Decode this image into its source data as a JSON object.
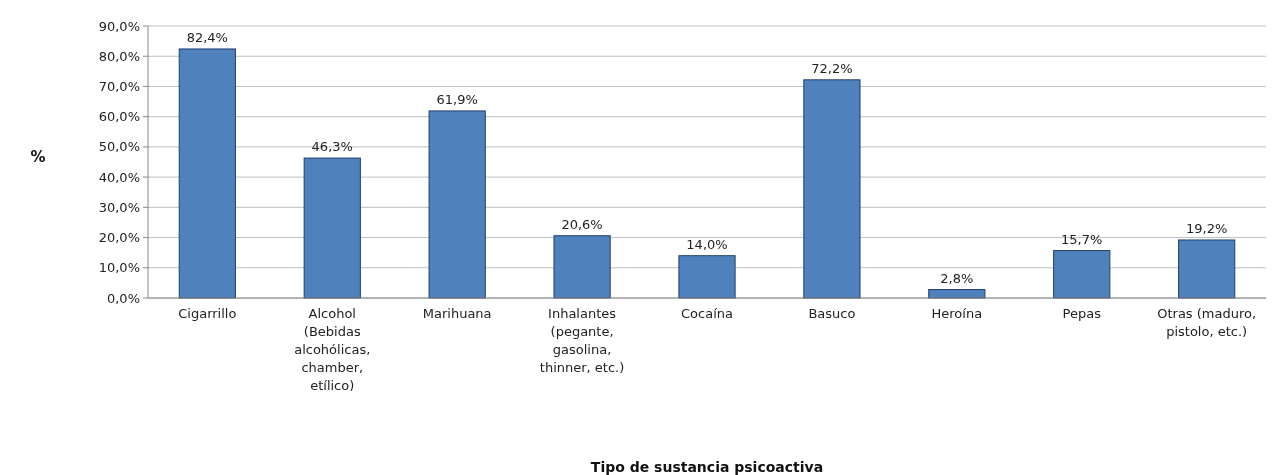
{
  "chart_data": {
    "type": "bar",
    "xlabel": "Tipo de sustancia psicoactiva",
    "ylabel": "%",
    "categories": [
      "Cigarrillo",
      "Alcohol (Bebidas alcohólicas, chamber, etílico)",
      "Marihuana",
      "Inhalantes (pegante, gasolina, thinner, etc.)",
      "Cocaína",
      "Basuco",
      "Heroína",
      "Pepas",
      "Otras (maduro, pistolo, etc.)"
    ],
    "values": [
      82.4,
      46.3,
      61.9,
      20.6,
      14.0,
      72.2,
      2.8,
      15.7,
      19.2
    ],
    "value_labels": [
      "82,4%",
      "46,3%",
      "61,9%",
      "20,6%",
      "14,0%",
      "72,2%",
      "2,8%",
      "15,7%",
      "19,2%"
    ],
    "color": "#4f81bd",
    "ylim": [
      0,
      90
    ],
    "yticks": [
      {
        "value": 0,
        "label": "0,0%"
      },
      {
        "value": 10,
        "label": "10,0%"
      },
      {
        "value": 20,
        "label": "20,0%"
      },
      {
        "value": 30,
        "label": "30,0%"
      },
      {
        "value": 40,
        "label": "40,0%"
      },
      {
        "value": 50,
        "label": "50,0%"
      },
      {
        "value": 60,
        "label": "60,0%"
      },
      {
        "value": 70,
        "label": "70,0%"
      },
      {
        "value": 80,
        "label": "80,0%"
      },
      {
        "value": 90,
        "label": "90,0%"
      }
    ],
    "grid": "y"
  }
}
